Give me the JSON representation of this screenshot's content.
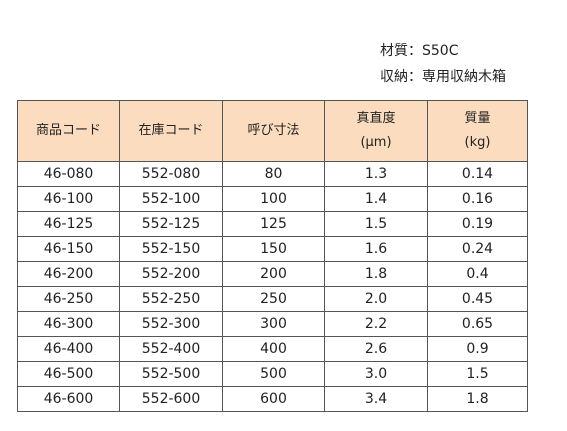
{
  "notes": {
    "material": "材質：S50C",
    "storage": "収納：専用収納木箱"
  },
  "table": {
    "headers": {
      "product_code": "商品コード",
      "stock_code": "在庫コード",
      "nominal_size": "呼び寸法",
      "straightness": "真直度",
      "straightness_unit": "(μm)",
      "mass": "質量",
      "mass_unit": "(kg)"
    },
    "rows": [
      [
        "46-080",
        "552-080",
        "80",
        "1.3",
        "0.14"
      ],
      [
        "46-100",
        "552-100",
        "100",
        "1.4",
        "0.16"
      ],
      [
        "46-125",
        "552-125",
        "125",
        "1.5",
        "0.19"
      ],
      [
        "46-150",
        "552-150",
        "150",
        "1.6",
        "0.24"
      ],
      [
        "46-200",
        "552-200",
        "200",
        "1.8",
        "0.4"
      ],
      [
        "46-250",
        "552-250",
        "250",
        "2.0",
        "0.45"
      ],
      [
        "46-300",
        "552-300",
        "300",
        "2.2",
        "0.65"
      ],
      [
        "46-400",
        "552-400",
        "400",
        "2.6",
        "0.9"
      ],
      [
        "46-500",
        "552-500",
        "500",
        "3.0",
        "1.5"
      ],
      [
        "46-600",
        "552-600",
        "600",
        "3.4",
        "1.8"
      ]
    ]
  },
  "colors": {
    "header_background": "#fbdcbf",
    "border": "#555555",
    "text": "#222222"
  }
}
